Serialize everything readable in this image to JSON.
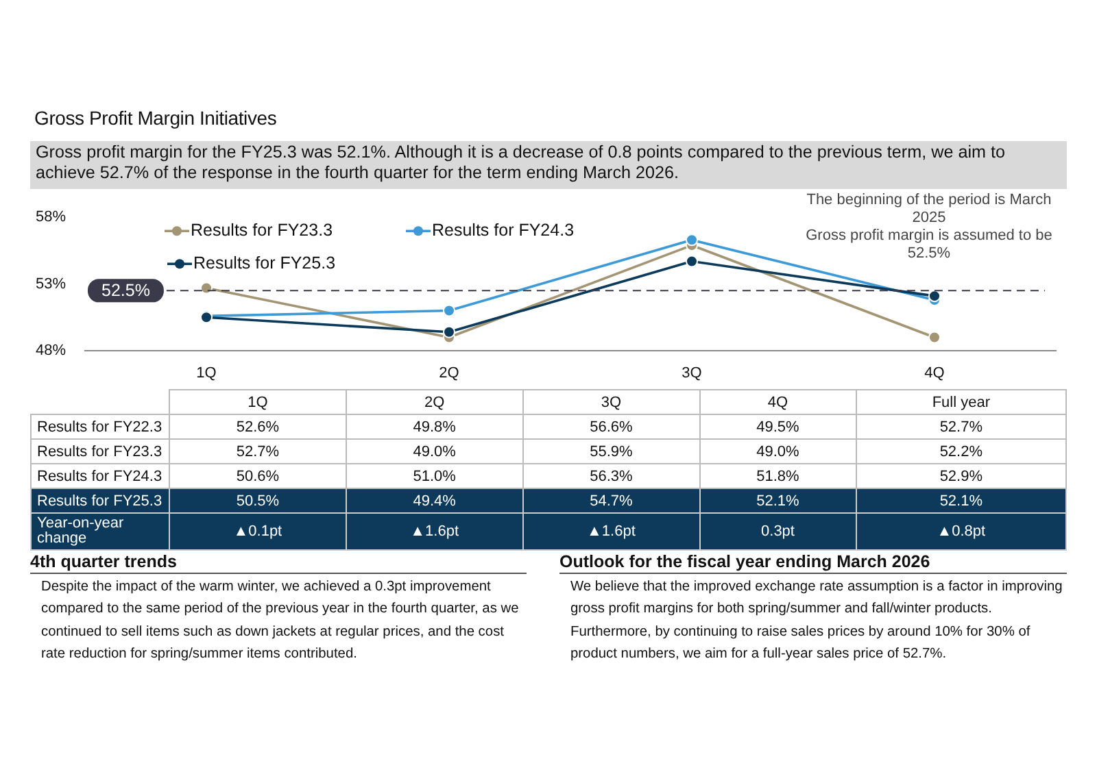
{
  "chart_data": {
    "type": "line",
    "title": "Gross Profit Margin Initiatives",
    "subtitle": "Gross profit margin for the FY25.3 was 52.1%. Although it is a decrease of 0.8 points compared to the previous term, we aim to achieve 52.7% of the response in the fourth quarter for the term ending March 2026.",
    "categories": [
      "1Q",
      "2Q",
      "3Q",
      "4Q"
    ],
    "series": [
      {
        "name": "Results for FY23.3",
        "color": "#a39574",
        "values": [
          52.7,
          49.0,
          55.9,
          49.0
        ]
      },
      {
        "name": "Results for FY24.3",
        "color": "#3d9ad6",
        "values": [
          50.6,
          51.0,
          56.3,
          51.8
        ]
      },
      {
        "name": "Results for FY25.3",
        "color": "#0c3a5a",
        "values": [
          50.5,
          49.4,
          54.7,
          52.1
        ]
      }
    ],
    "ylim": [
      48,
      58
    ],
    "yticks": [
      {
        "value": 48,
        "label": "48%"
      },
      {
        "value": 53,
        "label": "53%"
      },
      {
        "value": 58,
        "label": "58%"
      }
    ],
    "ref_lines": [
      {
        "axis": "y",
        "value": 52.5,
        "label": "52.5%",
        "color": "#3a3a4a",
        "line_style": "dashed"
      }
    ],
    "grid": false,
    "legend": "top left",
    "marker": "circle",
    "line_style": "solid",
    "annotations": [
      "The beginning of the period is March 2025\nGross profit margin is assumed to be 52.5%",
      "Full year",
      "Results for FY22.3",
      "52.6%",
      "49.8%",
      "56.6%",
      "49.5%",
      "52.7%",
      "52.7%",
      "49.0%",
      "55.9%",
      "49.0%",
      "52.2%",
      "50.6%",
      "51.0%",
      "56.3%",
      "51.8%",
      "52.9%",
      "50.5%",
      "49.4%",
      "54.7%",
      "52.1%",
      "52.1%",
      "Year-on-year change",
      "▲0.1pt",
      "▲1.6pt",
      "▲1.6pt",
      "0.3pt",
      "▲0.8pt",
      "4th quarter trends",
      "Despite the impact of the warm winter, we achieved a 0.3pt improvement compared to the same period of the previous year in the fourth quarter, as we continued to sell items such as down jackets at regular prices, and the cost rate reduction for spring/summer items contributed.",
      "Outlook for the fiscal year ending March 2026",
      "We believe that the improved exchange rate assumption is a factor in improving gross profit margins for both spring/summer and fall/winter products. Furthermore, by continuing to raise sales prices by around 10% for 30% of product numbers, we aim for a full-year sales price of 52.7%."
    ]
  }
}
